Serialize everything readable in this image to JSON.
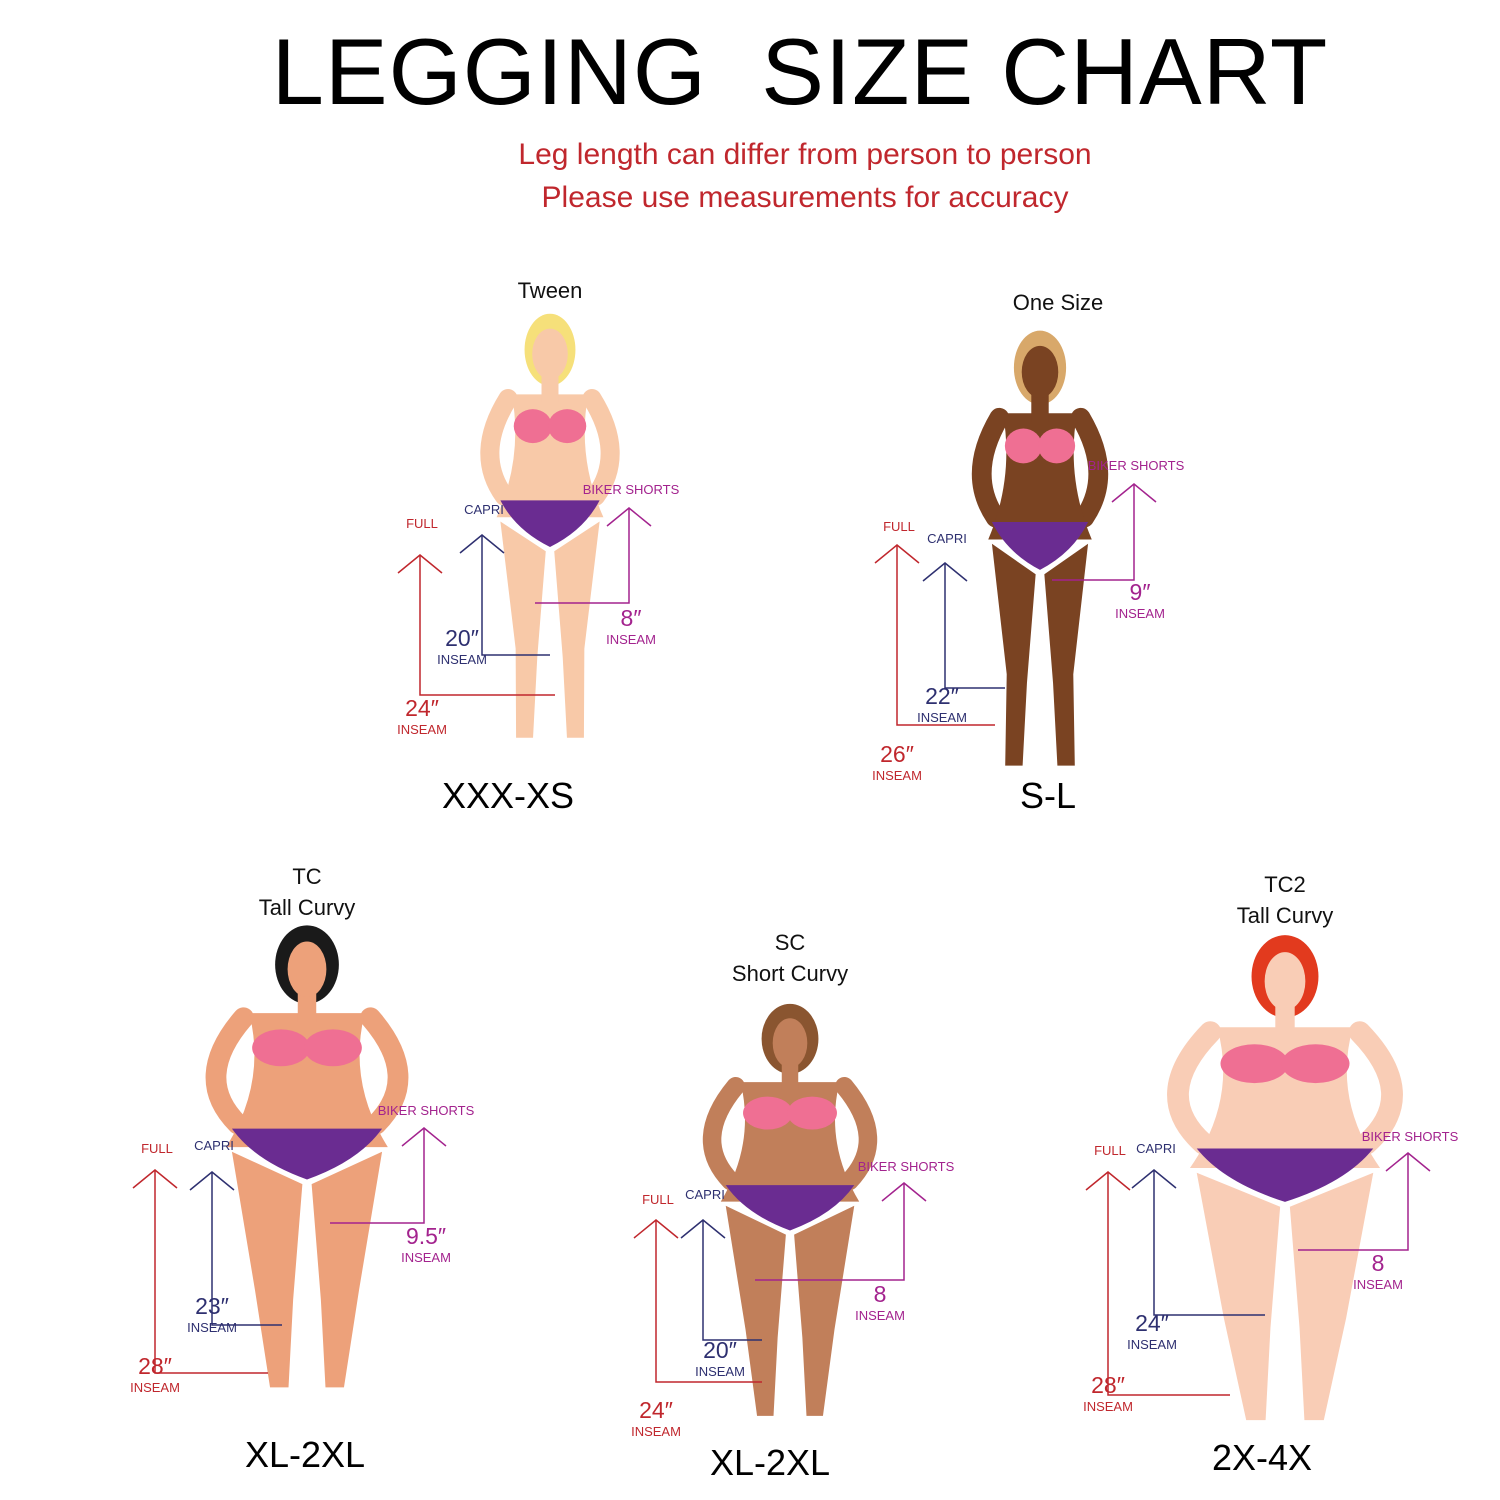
{
  "title": "LEGGING  SIZE CHART",
  "subtitle_lines": [
    "Leg length can differ from person to person",
    "Please use measurements for accuracy"
  ],
  "colors": {
    "full": "#c0272d",
    "capri": "#2e3070",
    "biker_shorts": "#a3238e",
    "bra": "#ef6f93",
    "briefs": "#6a2c91",
    "subtitle": "#c0272d"
  },
  "labels": {
    "full": "FULL",
    "capri": "CAPRI",
    "biker_shorts": "BIKER SHORTS",
    "inseam": "INSEAM"
  },
  "panels": [
    {
      "title_lines": [
        "Tween"
      ],
      "size": "XXX-XS",
      "full": "24″",
      "capri": "20″",
      "biker_shorts": "8″",
      "skin": "#f8c9a8",
      "hair": "#f6e07a"
    },
    {
      "title_lines": [
        "One Size"
      ],
      "size": "S-L",
      "full": "26″",
      "capri": "22″",
      "biker_shorts": "9″",
      "skin": "#7a4322",
      "hair": "#d8a86a"
    },
    {
      "title_lines": [
        "TC",
        "Tall Curvy"
      ],
      "size": "XL-2XL",
      "full": "28″",
      "capri": "23″",
      "biker_shorts": "9.5″",
      "skin": "#eda17a",
      "hair": "#1a1a1a"
    },
    {
      "title_lines": [
        "SC",
        "Short Curvy"
      ],
      "size": "XL-2XL",
      "full": "24″",
      "capri": "20″",
      "biker_shorts": "8",
      "skin": "#c17f5a",
      "hair": "#8a5530"
    },
    {
      "title_lines": [
        "TC2",
        "Tall Curvy"
      ],
      "size": "2X-4X",
      "full": "28″",
      "capri": "24″",
      "biker_shorts": "8",
      "skin": "#f9cdb6",
      "hair": "#e23a1e"
    }
  ]
}
